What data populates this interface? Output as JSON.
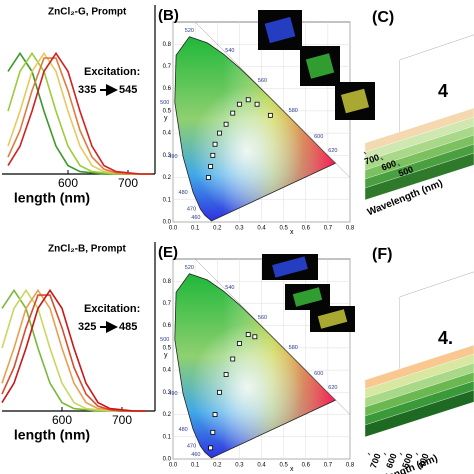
{
  "chart_data": [
    {
      "type": "line",
      "annotation": "ZnCl₂-G, Prompt",
      "excitation_label": "Excitation:",
      "excitation_from": "335",
      "excitation_to": "545",
      "xlabel": "length (nm)",
      "x": [
        500,
        520,
        540,
        560,
        580,
        600,
        620,
        640,
        660,
        680,
        700,
        720,
        740
      ],
      "xlim": [
        490,
        745
      ],
      "xticks": [
        600,
        700
      ],
      "ylim": [
        0,
        1.4
      ],
      "series": [
        {
          "color": "#3a9a2a",
          "values": [
            0.85,
            1,
            0.85,
            0.52,
            0.23,
            0.07,
            0.02,
            0.01,
            0,
            0,
            0,
            0,
            0
          ]
        },
        {
          "color": "#9ccc3a",
          "values": [
            0.52,
            0.85,
            1,
            0.85,
            0.52,
            0.23,
            0.07,
            0.02,
            0.01,
            0,
            0,
            0,
            0
          ]
        },
        {
          "color": "#e8c860",
          "values": [
            0.23,
            0.52,
            0.85,
            1,
            0.85,
            0.52,
            0.23,
            0.07,
            0.02,
            0.01,
            0,
            0,
            0
          ]
        },
        {
          "color": "#e07a40",
          "values": [
            0.14,
            0.36,
            0.69,
            0.96,
            0.96,
            0.69,
            0.36,
            0.14,
            0.04,
            0.01,
            0,
            0,
            0
          ]
        },
        {
          "color": "#d42020",
          "values": [
            0.07,
            0.23,
            0.52,
            0.85,
            1,
            0.85,
            0.52,
            0.23,
            0.07,
            0.02,
            0.01,
            0,
            0
          ]
        }
      ]
    },
    {
      "type": "cie",
      "panel_label": "(B)",
      "xlabel": "x",
      "ylabel": "y",
      "xlim": [
        0,
        0.8
      ],
      "ylim": [
        0,
        0.9
      ],
      "xticks": [
        {
          "value": 0,
          "label": "0.0"
        },
        {
          "value": 0.1,
          "label": "0.1"
        },
        {
          "value": 0.2,
          "label": "0.2"
        },
        {
          "value": 0.3,
          "label": "0.3"
        },
        {
          "value": 0.4,
          "label": "0.4"
        },
        {
          "value": 0.5,
          "label": "0.5"
        },
        {
          "value": 0.6,
          "label": "0.6"
        },
        {
          "value": 0.7,
          "label": "0.7"
        },
        {
          "value": 0.8,
          "label": "0.8"
        }
      ],
      "yticks": [
        {
          "value": 0,
          "label": "0.0"
        },
        {
          "value": 0.1,
          "label": "0.1"
        },
        {
          "value": 0.2,
          "label": "0.2"
        },
        {
          "value": 0.3,
          "label": "0.3"
        },
        {
          "value": 0.4,
          "label": "0.4"
        },
        {
          "value": 0.5,
          "label": "0.5"
        },
        {
          "value": 0.6,
          "label": "0.6"
        },
        {
          "value": 0.7,
          "label": "0.7"
        },
        {
          "value": 0.8,
          "label": "0.8"
        }
      ],
      "locus_labels": [
        "460",
        "470",
        "480",
        "490",
        "500",
        "520",
        "540",
        "560",
        "580",
        "600",
        "620"
      ],
      "series": [
        {
          "color": "#ffffff",
          "x": [
            0.16,
            0.17,
            0.18,
            0.19,
            0.21,
            0.24,
            0.27,
            0.3,
            0.34,
            0.38,
            0.44
          ],
          "values": [
            0.2,
            0.25,
            0.3,
            0.35,
            0.4,
            0.44,
            0.49,
            0.53,
            0.55,
            0.53,
            0.48
          ]
        }
      ]
    },
    {
      "type": "surface3d",
      "panel_label": "(C)",
      "big_label": "4",
      "axis_label": "Wavelength (nm)",
      "ticks": [
        700,
        600,
        500
      ]
    },
    {
      "type": "line",
      "annotation": "ZnCl₂-B, Prompt",
      "excitation_label": "Excitation:",
      "excitation_from": "325",
      "excitation_to": "485",
      "xlabel": "length (nm)",
      "x": [
        500,
        520,
        540,
        560,
        580,
        600,
        620,
        640,
        660,
        680,
        700,
        720,
        740
      ],
      "xlim": [
        500,
        755
      ],
      "xticks": [
        600,
        700
      ],
      "ylim": [
        0,
        1.4
      ],
      "series": [
        {
          "color": "#7ab83a",
          "values": [
            0.85,
            1,
            0.85,
            0.52,
            0.23,
            0.07,
            0.02,
            0.01,
            0,
            0,
            0,
            0,
            0
          ]
        },
        {
          "color": "#c8d860",
          "values": [
            0.52,
            0.85,
            1,
            0.85,
            0.52,
            0.23,
            0.07,
            0.02,
            0.01,
            0,
            0,
            0,
            0
          ]
        },
        {
          "color": "#e8a050",
          "values": [
            0.23,
            0.52,
            0.85,
            1,
            0.85,
            0.52,
            0.23,
            0.07,
            0.02,
            0.01,
            0,
            0,
            0
          ]
        },
        {
          "color": "#d84a30",
          "values": [
            0.14,
            0.36,
            0.69,
            0.96,
            0.96,
            0.69,
            0.36,
            0.14,
            0.04,
            0.01,
            0,
            0,
            0
          ]
        },
        {
          "color": "#c81818",
          "values": [
            0.07,
            0.23,
            0.52,
            0.85,
            1,
            0.85,
            0.52,
            0.23,
            0.07,
            0.02,
            0.01,
            0,
            0
          ]
        }
      ]
    },
    {
      "type": "cie",
      "panel_label": "(E)",
      "xlabel": "x",
      "ylabel": "y",
      "xlim": [
        0,
        0.8
      ],
      "ylim": [
        0,
        0.9
      ],
      "xticks": [
        {
          "value": 0,
          "label": "0.0"
        },
        {
          "value": 0.1,
          "label": "0.1"
        },
        {
          "value": 0.2,
          "label": "0.2"
        },
        {
          "value": 0.3,
          "label": "0.3"
        },
        {
          "value": 0.4,
          "label": "0.4"
        },
        {
          "value": 0.5,
          "label": "0.5"
        },
        {
          "value": 0.6,
          "label": "0.6"
        },
        {
          "value": 0.7,
          "label": "0.7"
        },
        {
          "value": 0.8,
          "label": "0.8"
        }
      ],
      "yticks": [
        {
          "value": 0,
          "label": "0.0"
        },
        {
          "value": 0.1,
          "label": "0.1"
        },
        {
          "value": 0.2,
          "label": "0.2"
        },
        {
          "value": 0.3,
          "label": "0.3"
        },
        {
          "value": 0.4,
          "label": "0.4"
        },
        {
          "value": 0.5,
          "label": "0.5"
        },
        {
          "value": 0.6,
          "label": "0.6"
        },
        {
          "value": 0.7,
          "label": "0.7"
        },
        {
          "value": 0.8,
          "label": "0.8"
        }
      ],
      "locus_labels": [
        "460",
        "470",
        "480",
        "490",
        "500",
        "520",
        "540",
        "560",
        "580",
        "600",
        "620"
      ],
      "series": [
        {
          "color": "#ffffff",
          "x": [
            0.17,
            0.18,
            0.19,
            0.21,
            0.24,
            0.27,
            0.3,
            0.34,
            0.37
          ],
          "values": [
            0.05,
            0.12,
            0.2,
            0.3,
            0.38,
            0.45,
            0.52,
            0.56,
            0.55
          ]
        }
      ]
    },
    {
      "type": "surface3d",
      "panel_label": "(F)",
      "big_label": "4.",
      "axis_label": "Wavelength (nm)",
      "ticks": [
        700,
        600,
        500,
        400
      ]
    }
  ]
}
